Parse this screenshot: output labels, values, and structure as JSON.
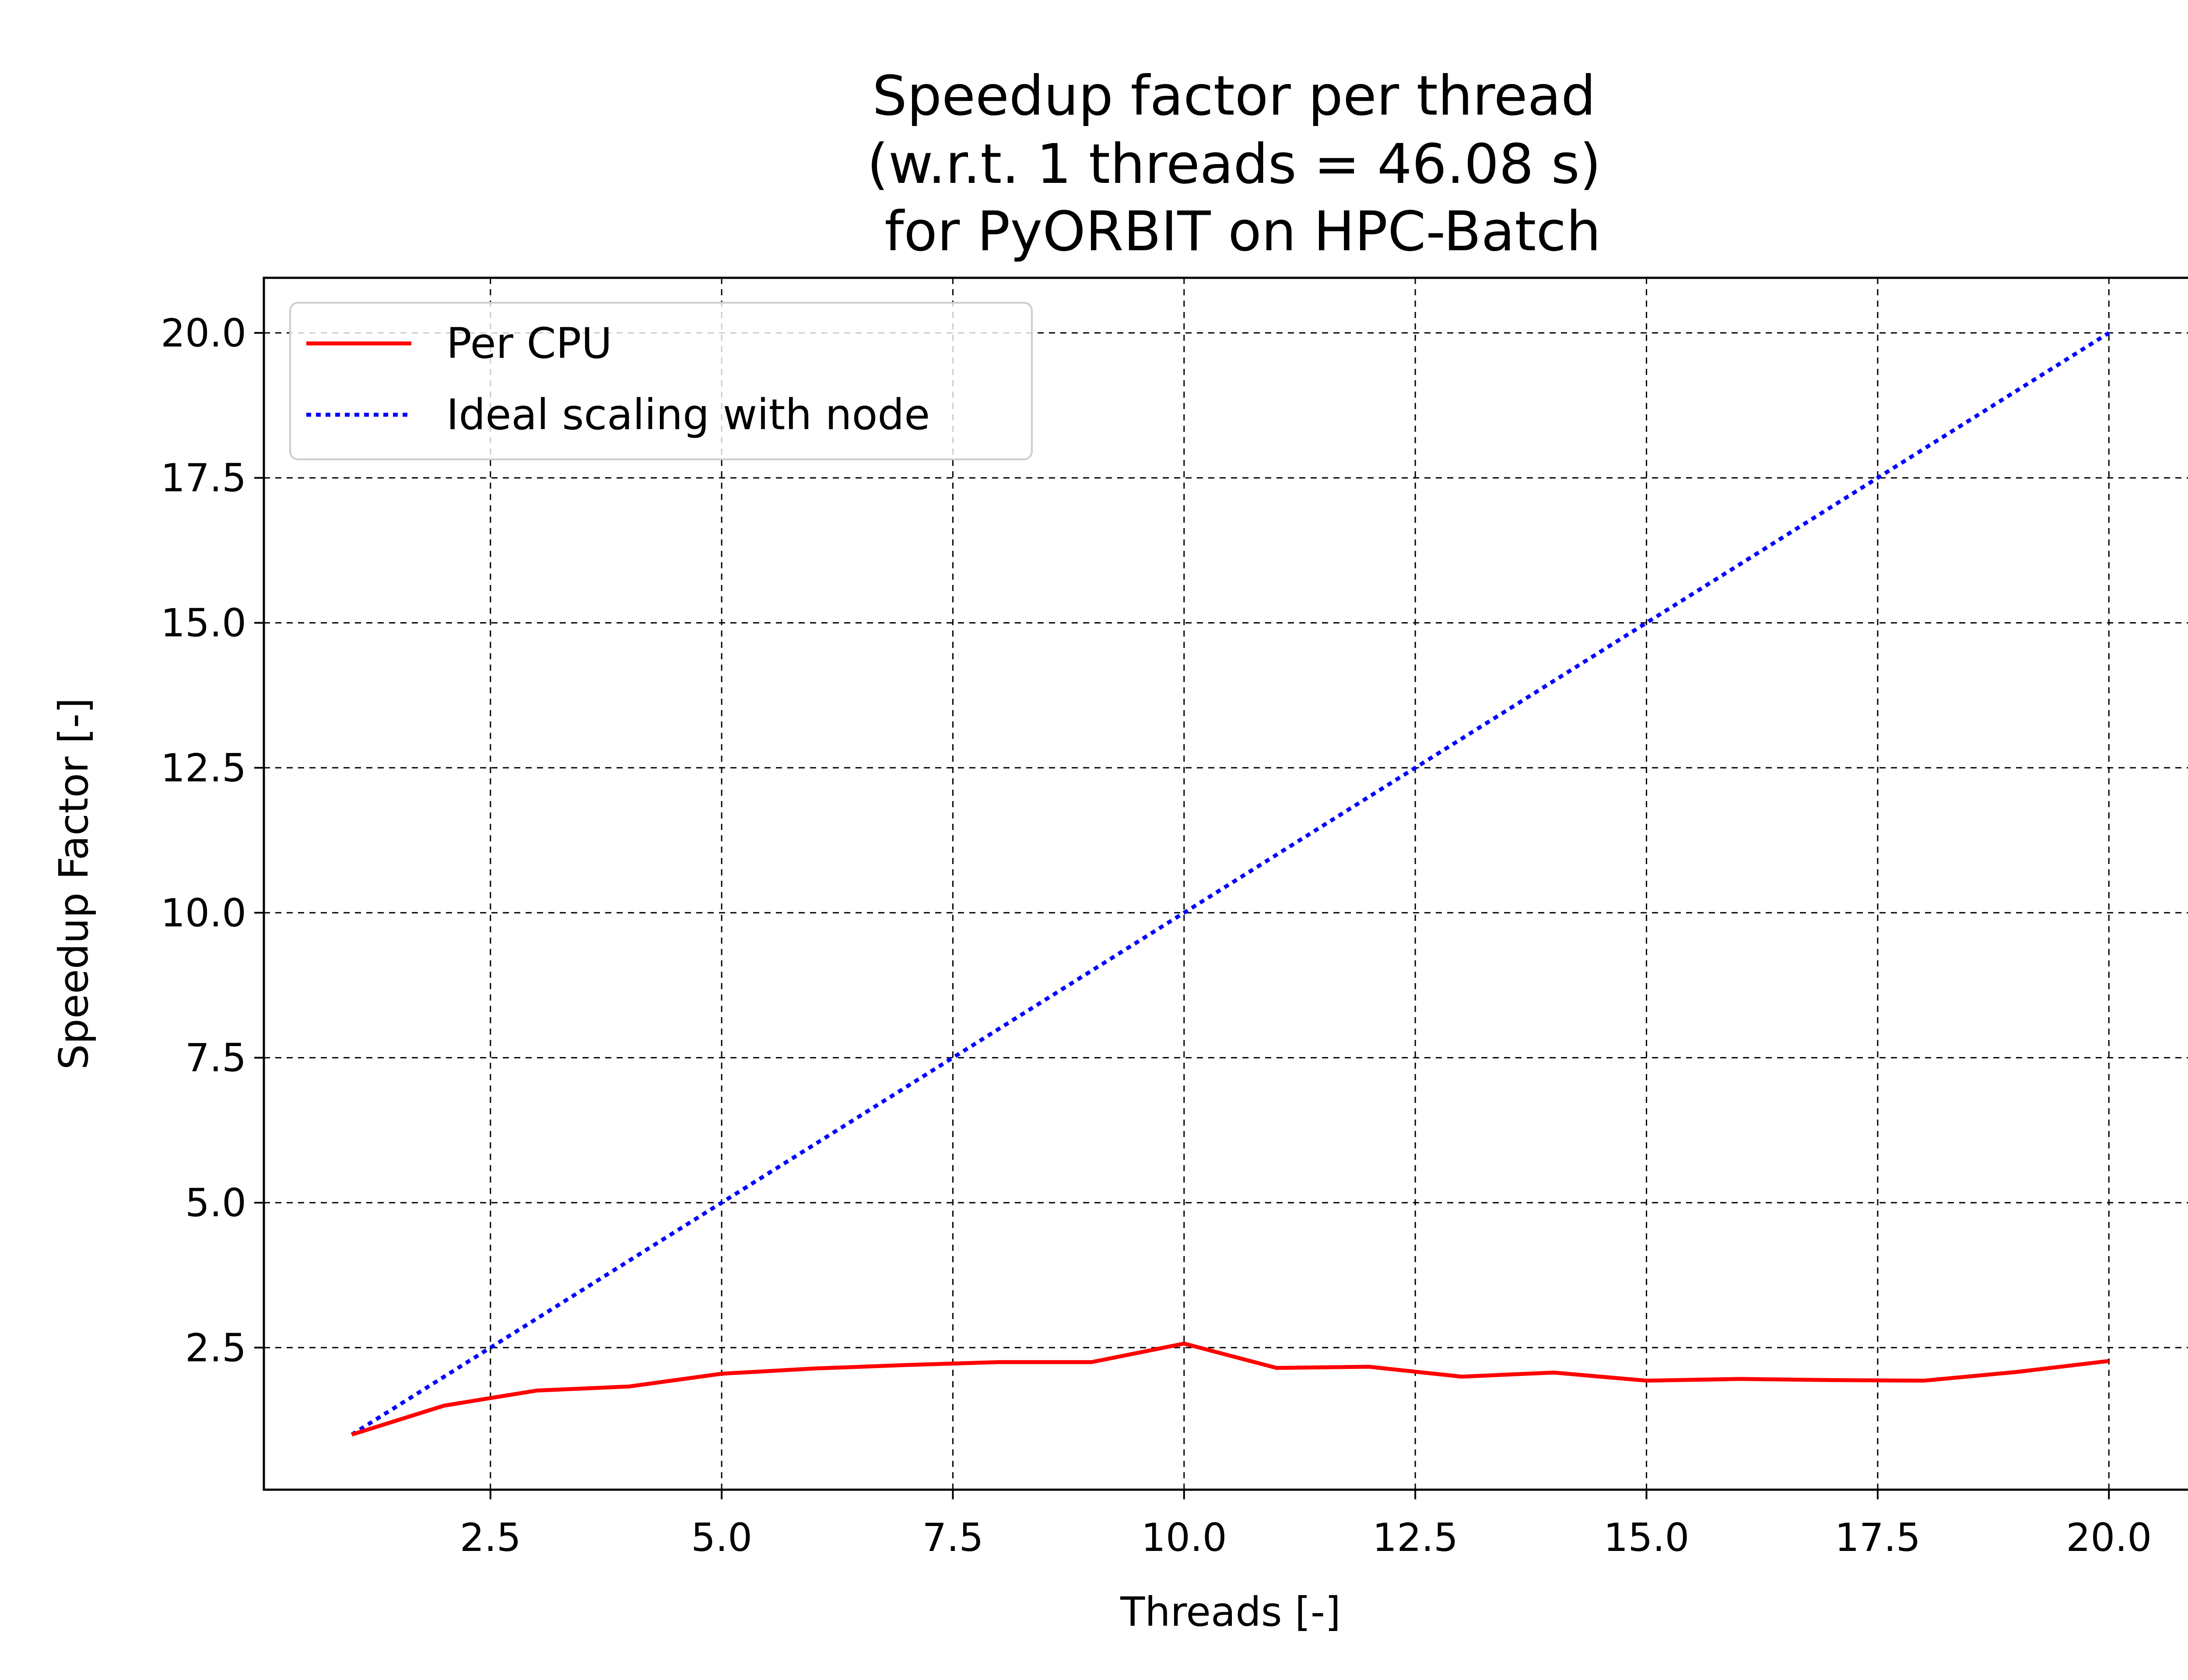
{
  "chart_data": {
    "type": "line",
    "title": [
      "Speedup factor per thread",
      "(w.r.t. 1 threads = 46.08 s)",
      " for PyORBIT on HPC-Batch"
    ],
    "xlabel": "Threads [-]",
    "ylabel": "Speedup Factor [-]",
    "xlim": [
      0.05,
      20.95
    ],
    "ylim": [
      0.05,
      20.95
    ],
    "xticks": [
      2.5,
      5.0,
      7.5,
      10.0,
      12.5,
      15.0,
      17.5,
      20.0
    ],
    "yticks": [
      2.5,
      5.0,
      7.5,
      10.0,
      12.5,
      15.0,
      17.5,
      20.0
    ],
    "xtick_labels": [
      "2.5",
      "5.0",
      "7.5",
      "10.0",
      "12.5",
      "15.0",
      "17.5",
      "20.0"
    ],
    "ytick_labels": [
      "2.5",
      "5.0",
      "7.5",
      "10.0",
      "12.5",
      "15.0",
      "17.5",
      "20.0"
    ],
    "grid": true,
    "legend_position": "top-left",
    "x": [
      1,
      2,
      3,
      4,
      5,
      6,
      7,
      8,
      9,
      10,
      11,
      12,
      13,
      14,
      15,
      16,
      17,
      18,
      19,
      20
    ],
    "series": [
      {
        "name": "Per CPU",
        "color": "#ff0000",
        "style": "solid",
        "values": [
          1.0,
          1.5,
          1.76,
          1.83,
          2.05,
          2.14,
          2.2,
          2.25,
          2.25,
          2.57,
          2.15,
          2.17,
          2.0,
          2.07,
          1.93,
          1.96,
          1.94,
          1.93,
          2.08,
          2.27
        ]
      },
      {
        "name": "Ideal scaling with node",
        "color": "#0000ff",
        "style": "dotted",
        "values": [
          1,
          2,
          3,
          4,
          5,
          6,
          7,
          8,
          9,
          10,
          11,
          12,
          13,
          14,
          15,
          16,
          17,
          18,
          19,
          20
        ]
      }
    ]
  }
}
